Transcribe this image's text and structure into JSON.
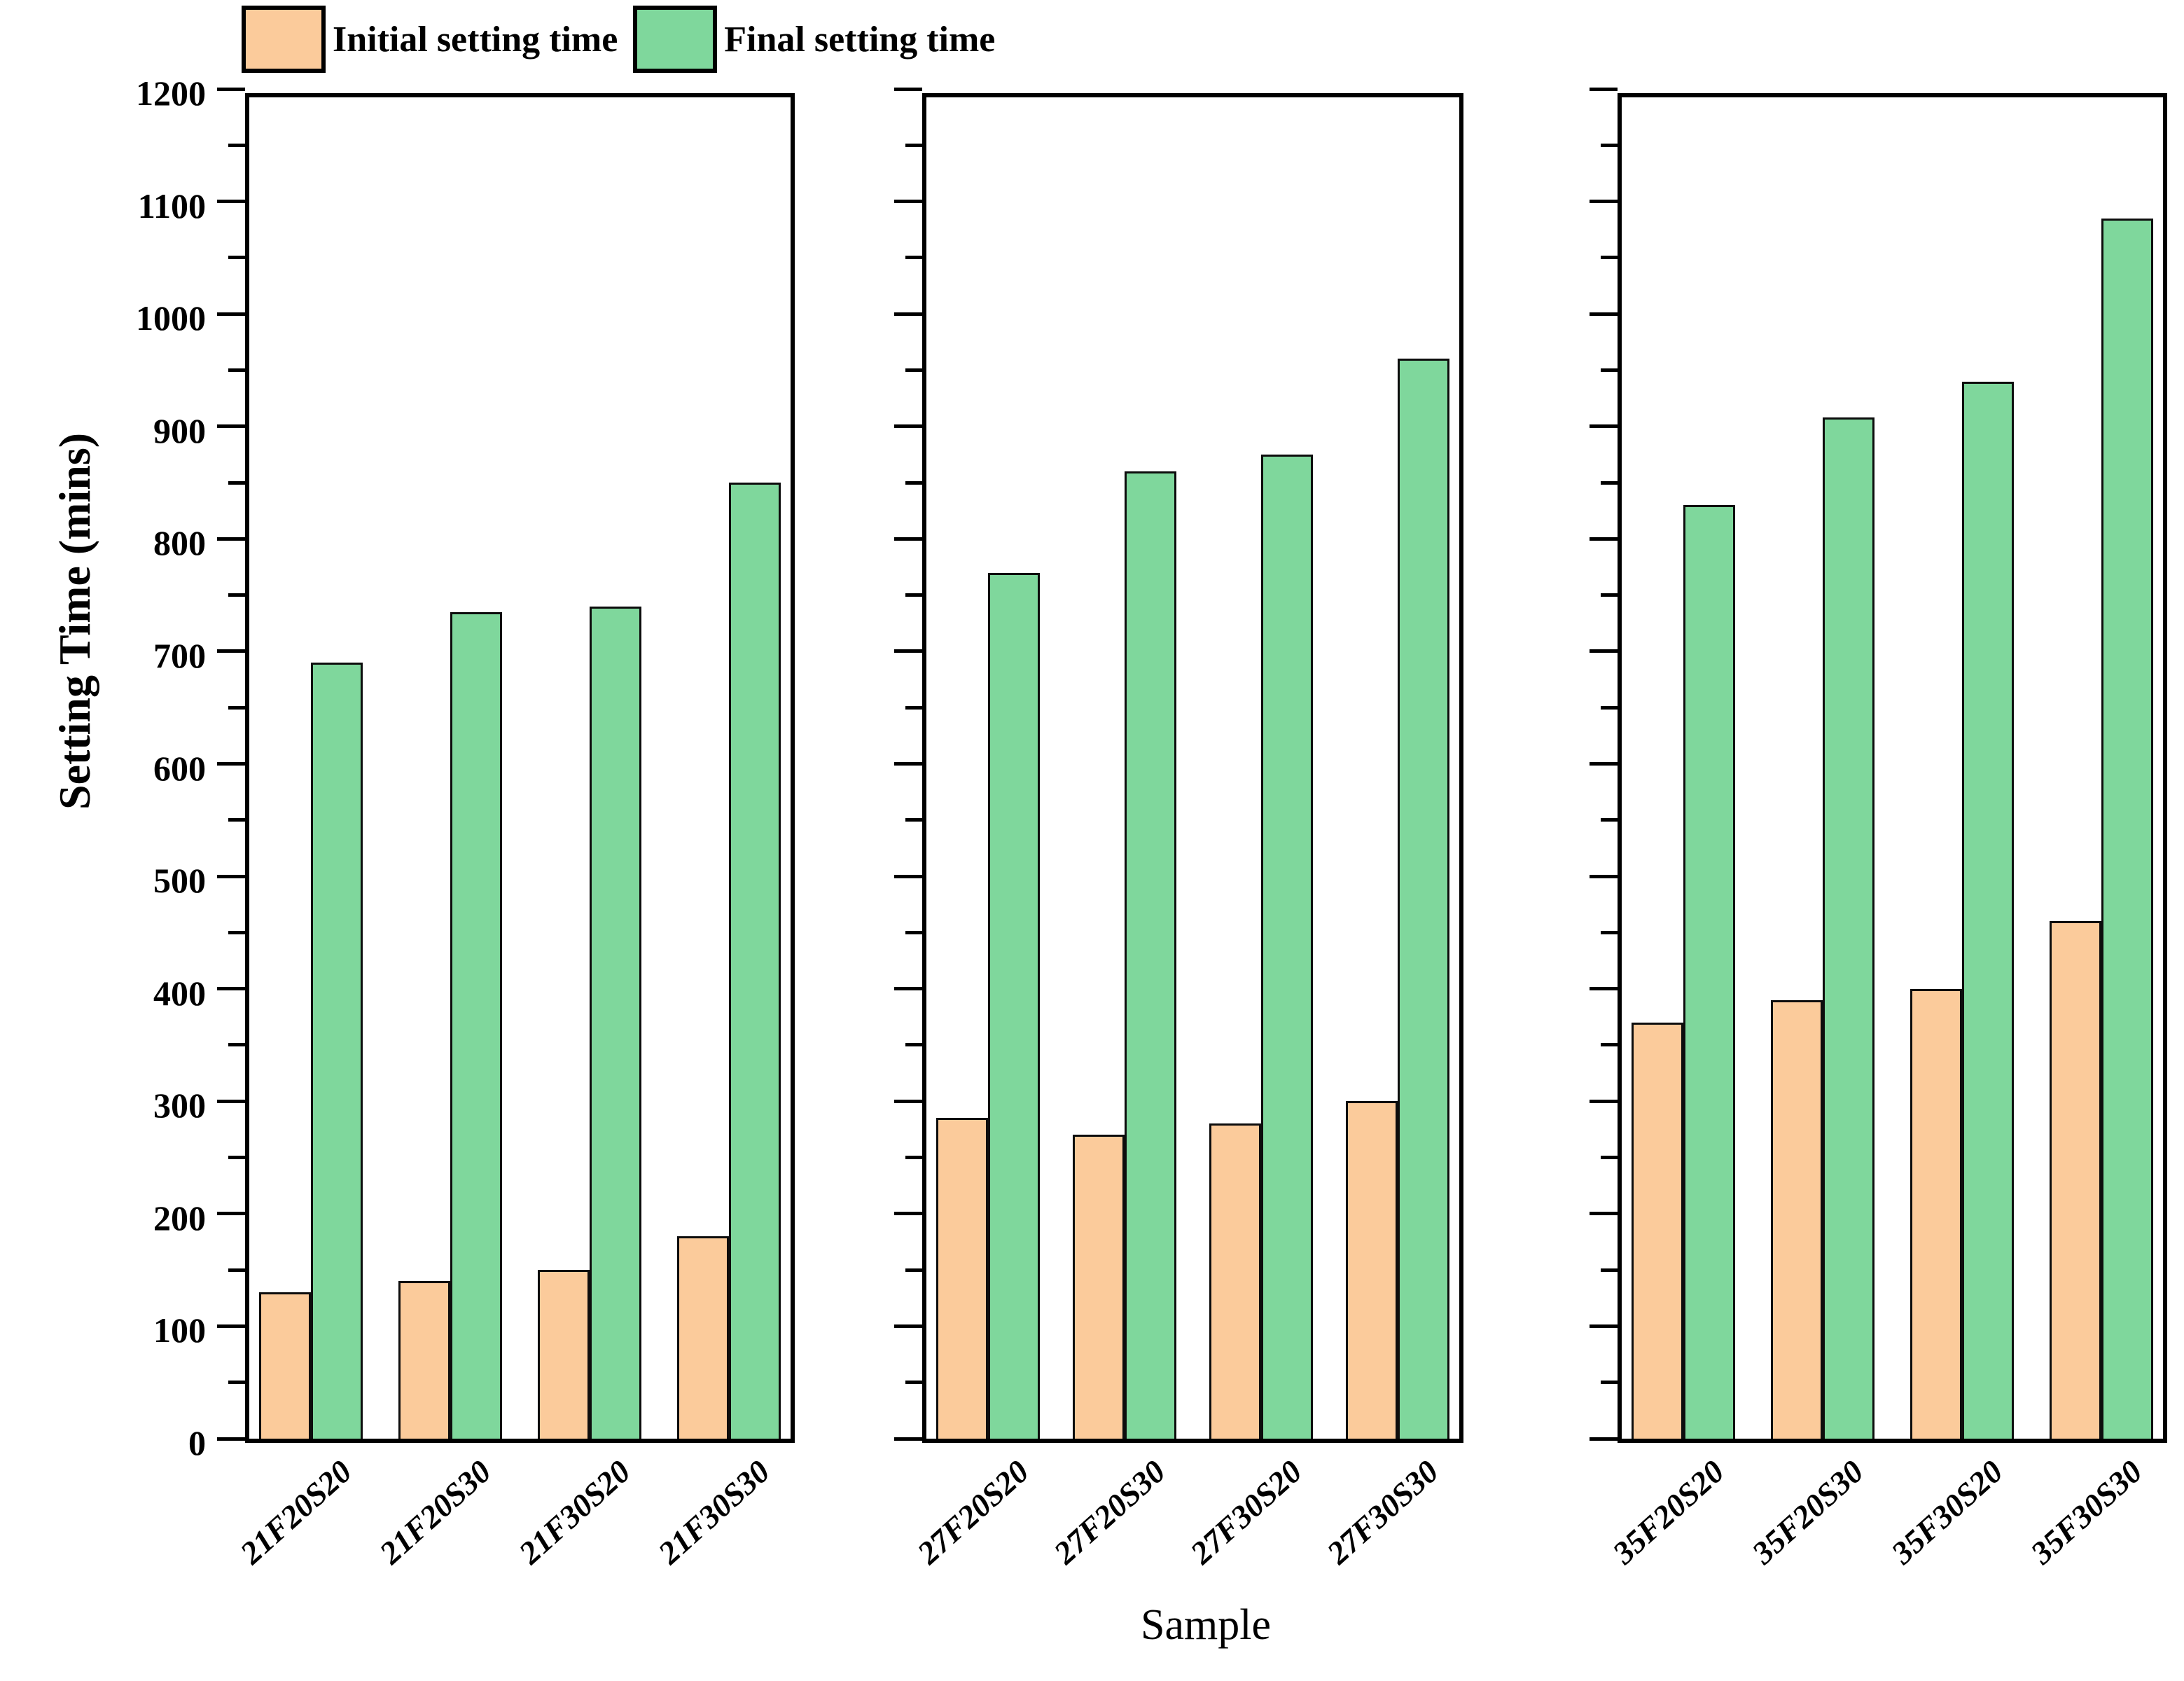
{
  "chart_data": {
    "type": "bar",
    "title": "",
    "xlabel": "Sample",
    "ylabel": "Setting Time (mins)",
    "ylim": [
      0,
      1200
    ],
    "y_major_tick": 100,
    "y_minor_tick": 50,
    "y_tick_labels": [
      "0",
      "100",
      "200",
      "300",
      "400",
      "500",
      "600",
      "700",
      "800",
      "900",
      "1000",
      "1100",
      "1200"
    ],
    "grid": "off",
    "legend_position": "top-left",
    "legend": [
      {
        "label": "Initial setting time",
        "color": "#FBCB9B"
      },
      {
        "label": "Final setting time",
        "color": "#7FD79C"
      }
    ],
    "bar_border_color": "#0d0d0d",
    "frame_color": "#000000",
    "panels": [
      {
        "categories": [
          "21F20S20",
          "21F20S30",
          "21F30S20",
          "21F30S30"
        ],
        "series": [
          {
            "name": "Initial setting time",
            "values": [
              130,
              140,
              150,
              180
            ]
          },
          {
            "name": "Final setting time",
            "values": [
              690,
              735,
              740,
              850
            ]
          }
        ]
      },
      {
        "categories": [
          "27F20S20",
          "27F20S30",
          "27F30S20",
          "27F30S30"
        ],
        "series": [
          {
            "name": "Initial setting time",
            "values": [
              285,
              270,
              280,
              300
            ]
          },
          {
            "name": "Final setting time",
            "values": [
              770,
              860,
              875,
              960
            ]
          }
        ]
      },
      {
        "categories": [
          "35F20S20",
          "35F20S30",
          "35F30S20",
          "35F30S30"
        ],
        "series": [
          {
            "name": "Initial setting time",
            "values": [
              370,
              390,
              400,
              460
            ]
          },
          {
            "name": "Final setting time",
            "values": [
              830,
              908,
              940,
              1085
            ]
          }
        ]
      }
    ]
  }
}
